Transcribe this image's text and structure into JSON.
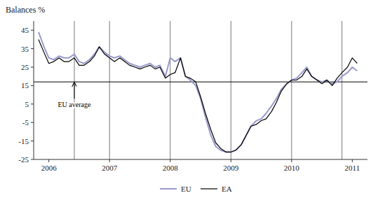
{
  "chart_data": {
    "type": "line",
    "y_label": "Balances %",
    "x": [
      2005.83,
      2005.92,
      2006.0,
      2006.08,
      2006.17,
      2006.25,
      2006.33,
      2006.42,
      2006.5,
      2006.58,
      2006.67,
      2006.75,
      2006.83,
      2006.92,
      2007.0,
      2007.08,
      2007.17,
      2007.25,
      2007.33,
      2007.42,
      2007.5,
      2007.58,
      2007.67,
      2007.75,
      2007.83,
      2007.92,
      2008.0,
      2008.08,
      2008.17,
      2008.25,
      2008.33,
      2008.42,
      2008.5,
      2008.58,
      2008.67,
      2008.75,
      2008.83,
      2008.92,
      2009.0,
      2009.08,
      2009.17,
      2009.25,
      2009.33,
      2009.42,
      2009.5,
      2009.58,
      2009.67,
      2009.75,
      2009.83,
      2009.92,
      2010.0,
      2010.08,
      2010.17,
      2010.25,
      2010.33,
      2010.42,
      2010.5,
      2010.58,
      2010.67,
      2010.75,
      2010.83,
      2010.92,
      2011.0,
      2011.08
    ],
    "series": [
      {
        "name": "EU",
        "color": "#9999cc",
        "values": [
          44,
          36,
          30,
          29,
          31,
          30,
          30,
          32,
          28,
          27,
          29,
          32,
          36,
          33,
          31,
          30,
          31,
          29,
          27,
          26,
          25,
          26,
          27,
          25,
          26,
          20,
          30,
          28,
          30,
          20,
          18,
          15,
          8,
          -2,
          -12,
          -18,
          -20,
          -21,
          -21,
          -20,
          -17,
          -12,
          -7,
          -4,
          -3,
          0,
          4,
          8,
          13,
          16,
          18,
          19,
          22,
          25,
          20,
          18,
          17,
          18,
          16,
          17,
          20,
          22,
          25,
          23
        ]
      },
      {
        "name": "EA",
        "color": "#000000",
        "values": [
          40,
          33,
          27,
          28,
          30,
          28,
          28,
          30,
          26,
          26,
          28,
          31,
          36,
          32,
          30,
          28,
          30,
          28,
          26,
          25,
          24,
          25,
          26,
          24,
          25,
          19,
          21,
          22,
          30,
          20,
          19,
          17,
          9,
          0,
          -9,
          -16,
          -19,
          -21,
          -21,
          -20,
          -17,
          -12,
          -7,
          -6,
          -4,
          -3,
          1,
          6,
          12,
          16,
          18,
          18,
          20,
          24,
          20,
          18,
          16,
          18,
          15,
          19,
          22,
          25,
          30,
          27
        ]
      }
    ],
    "xlim": [
      2005.75,
      2011.25
    ],
    "xticks": [
      2006,
      2007,
      2008,
      2009,
      2010,
      2011
    ],
    "ylim": [
      -25,
      50
    ],
    "yticks": [
      45,
      35,
      25,
      15,
      5,
      -5,
      -15,
      -25
    ],
    "hlines": [
      17
    ],
    "vlines": [
      2006.42,
      2007.0,
      2008.0,
      2009.0,
      2010.0,
      2010.83
    ],
    "annotations": [
      {
        "text": "EU average",
        "x": 2006.42,
        "y": 17
      }
    ],
    "grid": false,
    "legend": "bottom"
  }
}
